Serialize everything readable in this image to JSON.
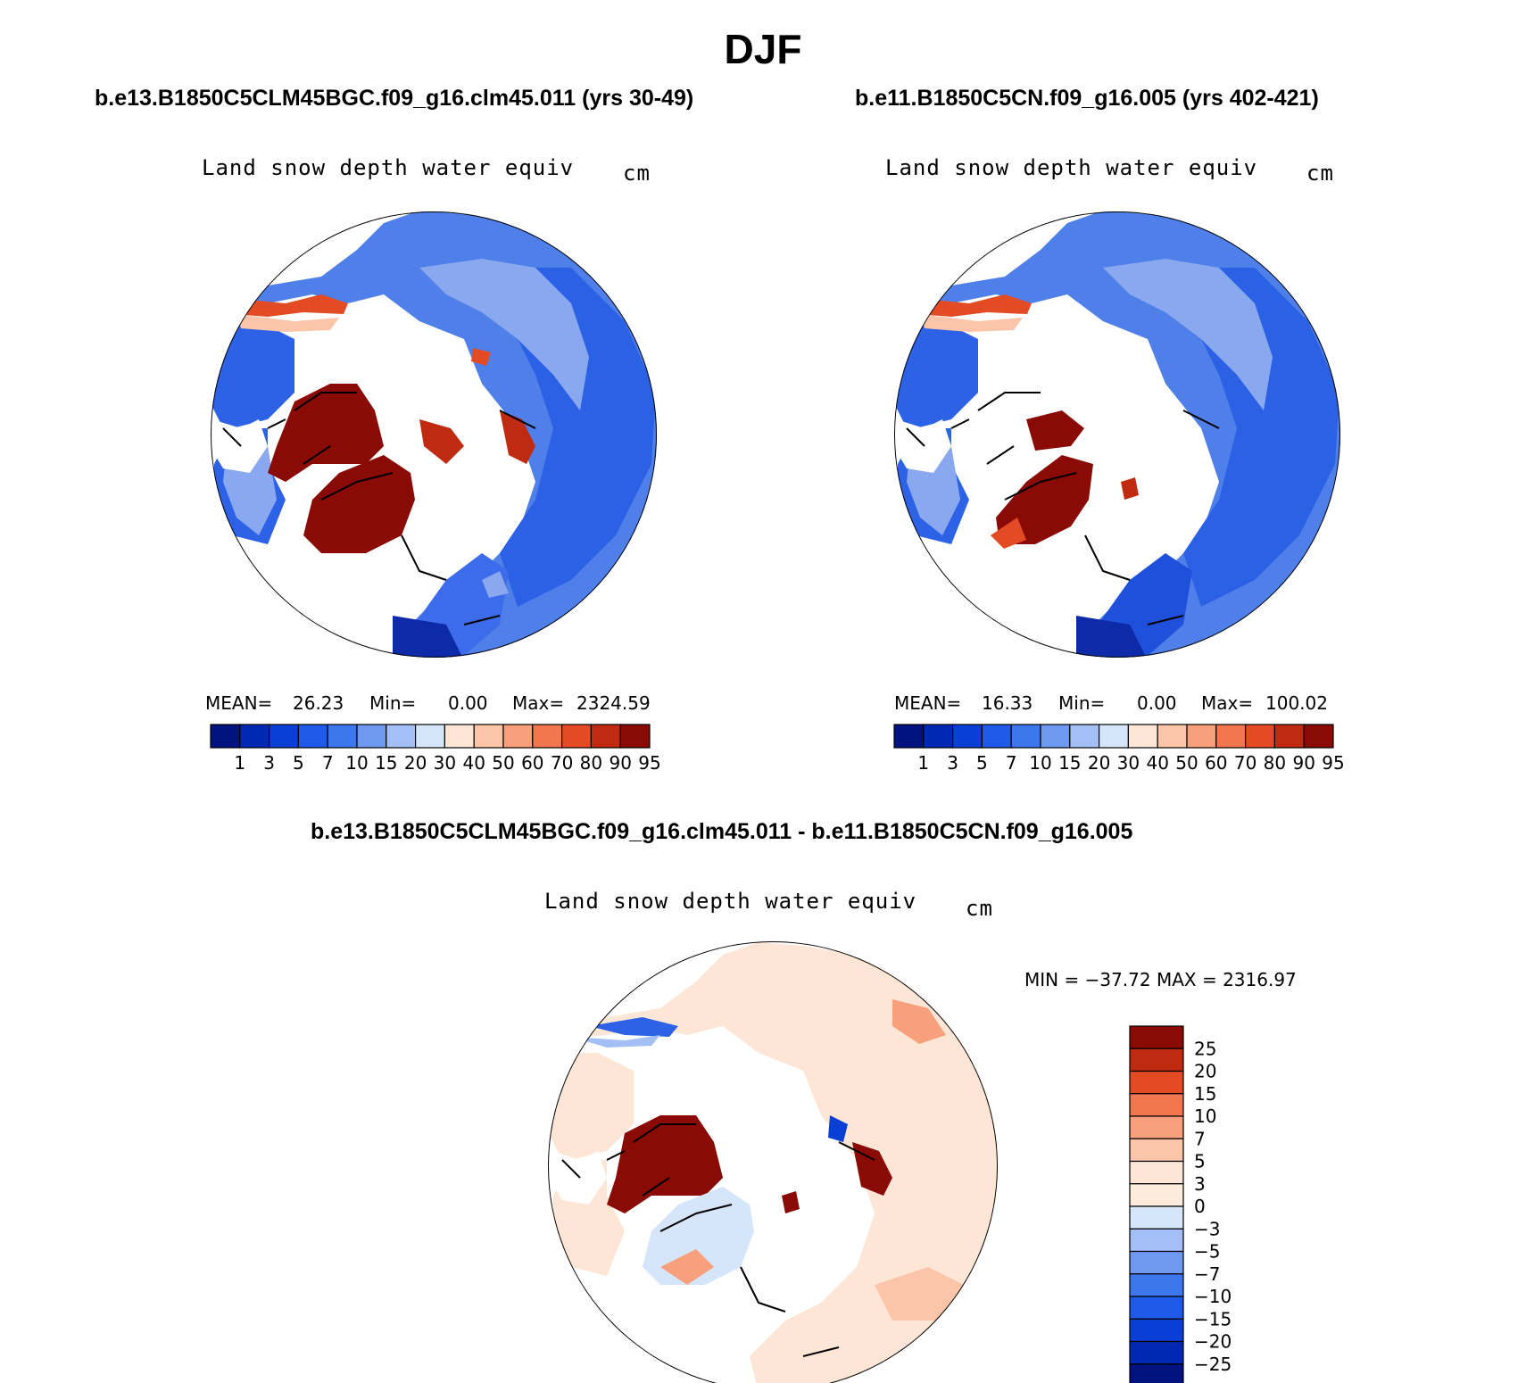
{
  "title": "DJF",
  "panels": [
    {
      "case": "b.e13.B1850C5CLM45BGC.f09_g16.clm45.011 (yrs 30-49)",
      "variable": "Land snow depth water equiv",
      "units": "cm",
      "stats": {
        "mean_label": "MEAN=",
        "mean": "26.23",
        "min_label": "Min=",
        "min": "0.00",
        "max_label": "Max=",
        "max": "2324.59"
      }
    },
    {
      "case": "b.e11.B1850C5CN.f09_g16.005 (yrs 402-421)",
      "variable": "Land snow depth water equiv",
      "units": "cm",
      "stats": {
        "mean_label": "MEAN=",
        "mean": "16.33",
        "min_label": "Min=",
        "min": "0.00",
        "max_label": "Max=",
        "max": "100.02"
      }
    }
  ],
  "difference": {
    "case": "b.e13.B1850C5CLM45BGC.f09_g16.clm45.011 - b.e11.B1850C5CN.f09_g16.005",
    "variable": "Land snow depth water equiv",
    "units": "cm",
    "minmax": "MIN = −37.72 MAX = 2316.97"
  },
  "colorbar_abs": {
    "labels": [
      "1",
      "3",
      "5",
      "7",
      "10",
      "15",
      "20",
      "30",
      "40",
      "50",
      "60",
      "70",
      "80",
      "90",
      "95"
    ],
    "colors": [
      "#00137f",
      "#0029b3",
      "#0a3fd6",
      "#1f5ae8",
      "#3d77ee",
      "#6f99f1",
      "#a3bff5",
      "#d6e6fa",
      "#fde6d6",
      "#fcc4a8",
      "#f8a07c",
      "#f2764e",
      "#e24b24",
      "#c02a10",
      "#8a0a06"
    ]
  },
  "colorbar_diff": {
    "labels": [
      "25",
      "20",
      "15",
      "10",
      "7",
      "5",
      "3",
      "0",
      "−3",
      "−5",
      "−7",
      "−10",
      "−15",
      "−20",
      "−25"
    ],
    "colors": [
      "#8a0a06",
      "#c02a10",
      "#e24b24",
      "#f2764e",
      "#f8a07c",
      "#fcc4a8",
      "#fde6d6",
      "#fdebdc",
      "#d6e6fa",
      "#a3bff5",
      "#6f99f1",
      "#3d77ee",
      "#1f5ae8",
      "#0a3fd6",
      "#0029b3",
      "#00137f"
    ]
  },
  "maps": {
    "ocean": "#ffffff",
    "coast": "#000000"
  }
}
